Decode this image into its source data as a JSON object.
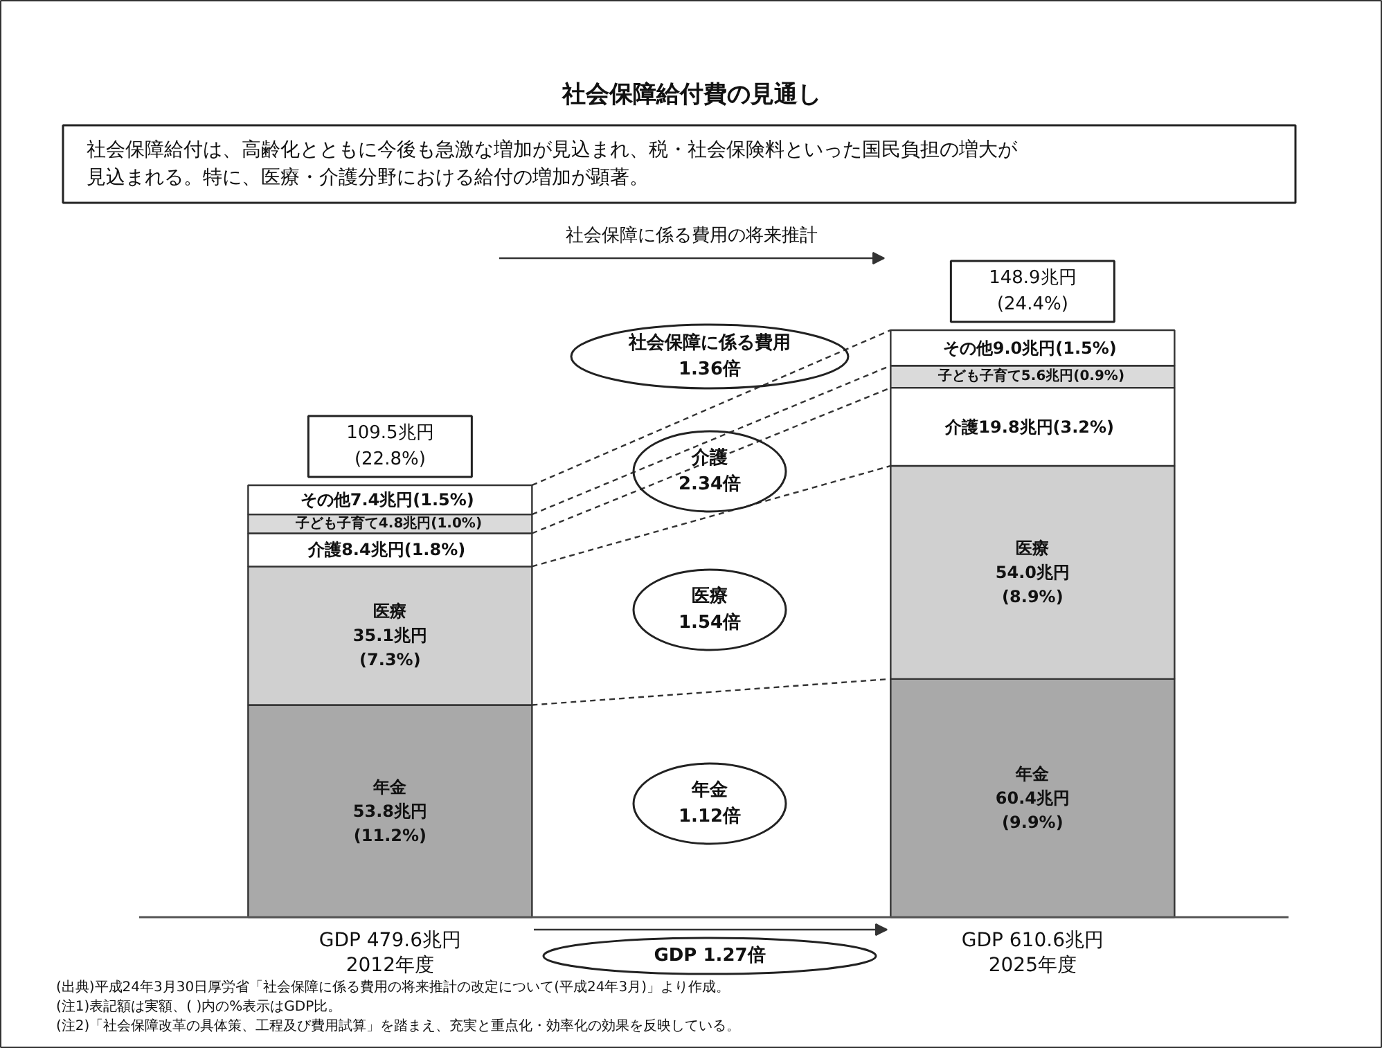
{
  "chart_data": {
    "type": "bar",
    "stacked": true,
    "title": "社会保障給付費の見通し",
    "subtitle": "社会保障給付は、高齢化とともに今後も急激な増加が見込まれ、税・社会保険料といった国民負担の増大が見込まれる。特に、医療・介護分野における給付の増加が顕著。",
    "categories": [
      "2012年度",
      "2025年度"
    ],
    "series": [
      {
        "name": "年金",
        "color": "#a9a9a9",
        "values": [
          53.8,
          60.4
        ],
        "value_labels": [
          "53.8兆円\n(11.2%)",
          "60.4兆円\n(9.9%)"
        ]
      },
      {
        "name": "医療",
        "color": "#d0d0d0",
        "values": [
          35.1,
          54.0
        ],
        "value_labels": [
          "35.1兆円\n(7.3%)",
          "54.0兆円\n(8.9%)"
        ]
      },
      {
        "name": "介護",
        "color": "#ffffff",
        "values": [
          8.4,
          19.8
        ],
        "value_labels": [
          "8.4兆円(1.8%)",
          "19.8兆円(3.2%)"
        ]
      },
      {
        "name": "子ども子育て",
        "color": "#dadada",
        "values": [
          4.8,
          5.6
        ],
        "value_labels": [
          "4.8兆円(1.0%)",
          "5.6兆円(0.9%)"
        ]
      },
      {
        "name": "その他",
        "color": "#ffffff",
        "values": [
          7.4,
          9.0
        ],
        "value_labels": [
          "7.4兆円(1.5%)",
          "9.0兆円(1.5%)"
        ]
      }
    ],
    "totals": [
      "109.5兆円\n(22.8%)",
      "148.9兆円\n(24.4%)"
    ],
    "annotations": [
      "社会保障に係る費用の将来推計",
      "社会保障に係る費用\n1.36倍",
      "介護\n2.34倍",
      "医療\n1.54倍",
      "年金\n1.12倍",
      "GDP 1.27倍",
      "GDP 479.6兆円",
      "GDP 610.6兆円",
      "(出典)平成24年3月30日厚労省「社会保障に係る費用の将来推計の改定について(平成24年3月)」より作成。",
      "(注1)表記額は実額、( )内の%表示はGDP比。",
      "(注2)「社会保障改革の具体策、工程及び費用試算」を踏まえ、充実と重点化・効率化の効果を反映している。"
    ]
  }
}
